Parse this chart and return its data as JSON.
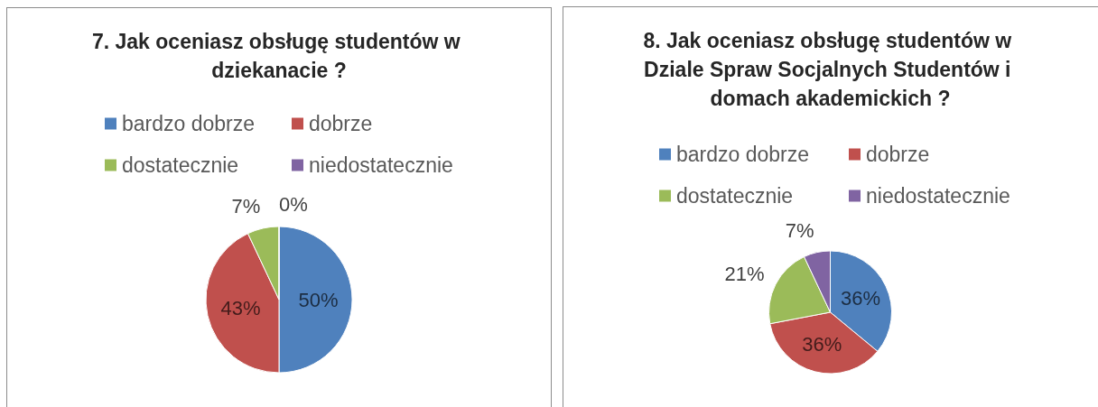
{
  "chart_data": [
    {
      "type": "pie",
      "title": "7. Jak oceniasz obsługę studentów w dziekanacie ?",
      "categories": [
        "bardzo dobrze",
        "dobrze",
        "dostatecznie",
        "niedostatecznie"
      ],
      "values": [
        50,
        43,
        7,
        0
      ],
      "colors": [
        "#4f81bd",
        "#c0504d",
        "#9bbb59",
        "#8064a2"
      ],
      "value_labels": [
        "50%",
        "43%",
        "7%",
        "0%"
      ],
      "legend": "top"
    },
    {
      "type": "pie",
      "title": "8. Jak oceniasz obsługę studentów w Dziale Spraw Socjalnych Studentów i domach akademickich ?",
      "categories": [
        "bardzo dobrze",
        "dobrze",
        "dostatecznie",
        "niedostatecznie"
      ],
      "values": [
        36,
        36,
        21,
        7
      ],
      "colors": [
        "#4f81bd",
        "#c0504d",
        "#9bbb59",
        "#8064a2"
      ],
      "value_labels": [
        "36%",
        "36%",
        "21%",
        "7%"
      ],
      "legend": "top"
    }
  ]
}
